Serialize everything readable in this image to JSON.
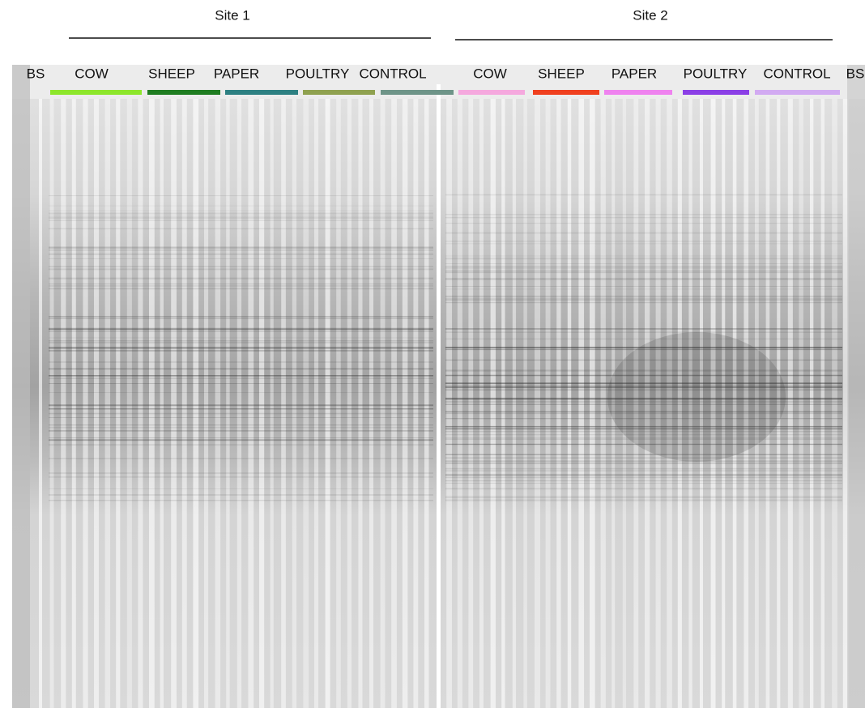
{
  "sites": [
    {
      "label": "Site 1",
      "left_marker": "BS",
      "groups": [
        {
          "label": "COW",
          "color": "#8de62b"
        },
        {
          "label": "SHEEP",
          "color": "#1f7d21"
        },
        {
          "label": "PAPER",
          "color": "#2d8082"
        },
        {
          "label": "POULTRY",
          "color": "#8fa14f"
        },
        {
          "label": "CONTROL",
          "color": "#6e9488"
        }
      ]
    },
    {
      "label": "Site 2",
      "right_marker": "BS",
      "groups": [
        {
          "label": "COW",
          "color": "#f5a8de"
        },
        {
          "label": "SHEEP",
          "color": "#f0401f"
        },
        {
          "label": "PAPER",
          "color": "#ef82ef"
        },
        {
          "label": "POULTRY",
          "color": "#8b3fe6"
        },
        {
          "label": "CONTROL",
          "color": "#d2aaf2"
        }
      ]
    }
  ]
}
